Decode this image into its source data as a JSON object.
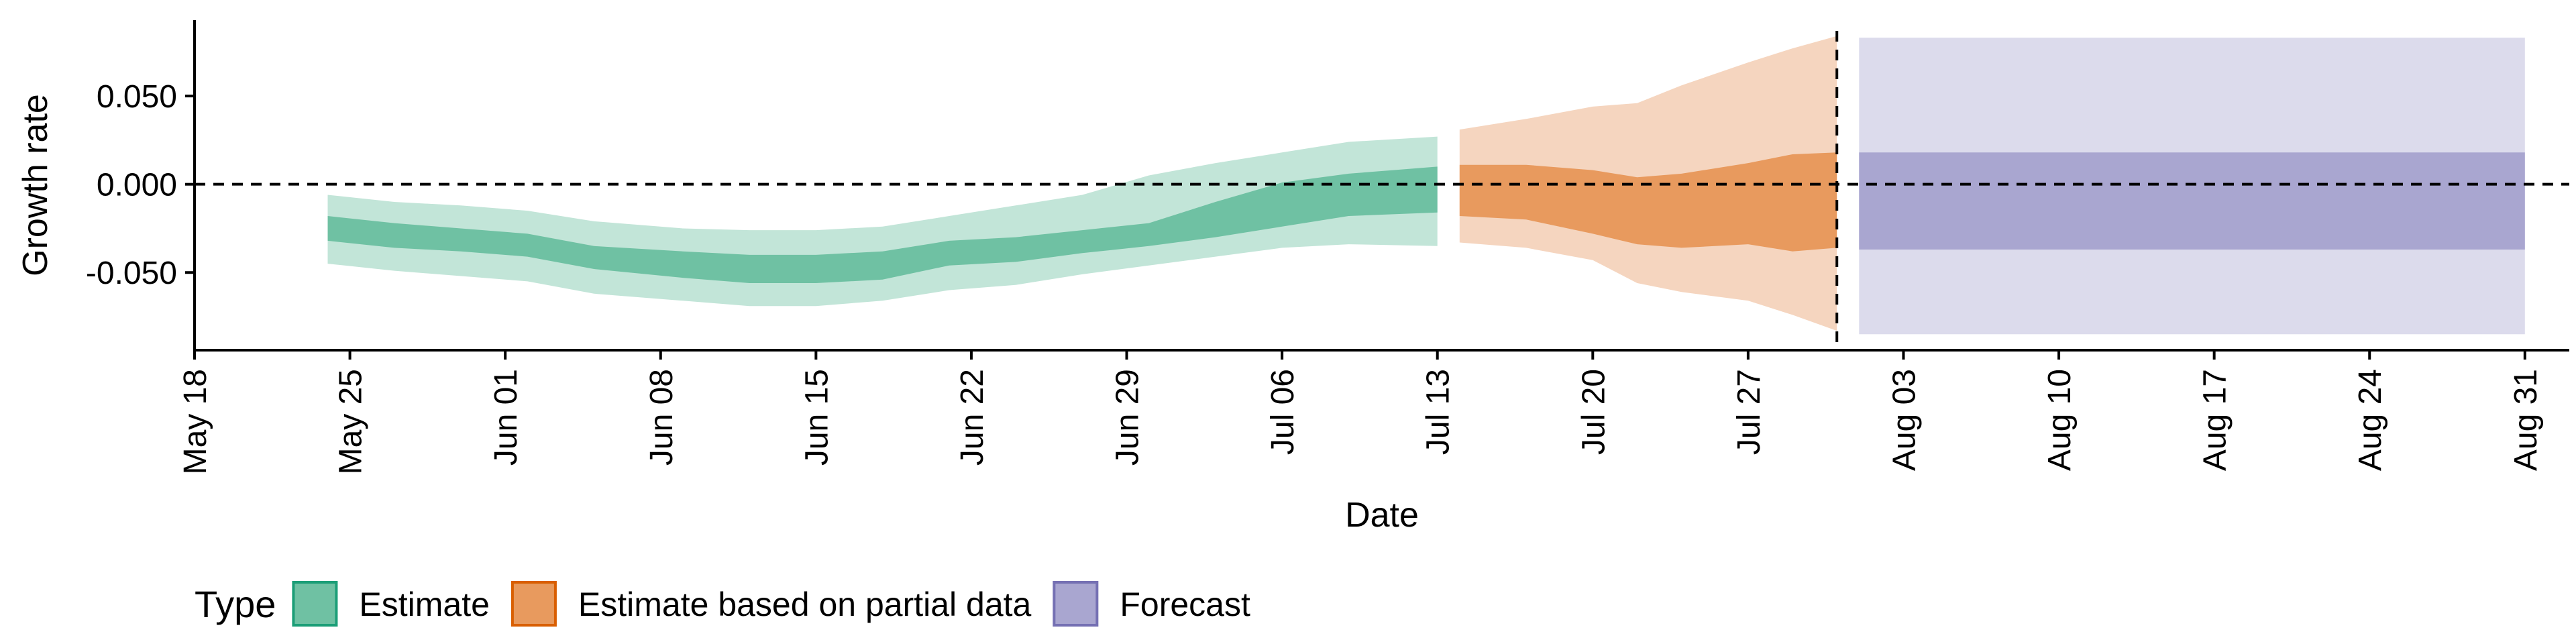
{
  "chart_data": {
    "type": "area",
    "xlabel": "Date",
    "ylabel": "Growth rate",
    "y_ticks": [
      -0.05,
      0.0,
      0.05
    ],
    "y_tick_labels": [
      "-0.050",
      "0.000",
      "0.050"
    ],
    "x_ticks": [
      "2020-05-18",
      "2020-05-25",
      "2020-06-01",
      "2020-06-08",
      "2020-06-15",
      "2020-06-22",
      "2020-06-29",
      "2020-07-06",
      "2020-07-13",
      "2020-07-20",
      "2020-07-27",
      "2020-08-03",
      "2020-08-10",
      "2020-08-17",
      "2020-08-24",
      "2020-08-31"
    ],
    "x_tick_labels": [
      "May 18",
      "May 25",
      "Jun 01",
      "Jun 08",
      "Jun 15",
      "Jun 22",
      "Jun 29",
      "Jul 06",
      "Jul 13",
      "Jul 20",
      "Jul 27",
      "Aug 03",
      "Aug 10",
      "Aug 17",
      "Aug 24",
      "Aug 31"
    ],
    "xlim": [
      "2020-05-18",
      "2020-09-02"
    ],
    "ylim": [
      -0.094,
      0.093
    ],
    "reference_line_y": 0.0,
    "forecast_start_date": "2020-07-31",
    "legend": {
      "title": "Type",
      "position": "bottom",
      "entries": [
        "Estimate",
        "Estimate based on partial data",
        "Forecast"
      ]
    },
    "colors": {
      "Estimate": {
        "inner": "#6fc1a3",
        "outer": "#c2e5d8",
        "border": "#1b9e77"
      },
      "Estimate based on partial data": {
        "inner": "#e89a5e",
        "outer": "#f5d5bf",
        "border": "#d95f02"
      },
      "Forecast": {
        "inner": "#a9a6d0",
        "outer": "#dcdbec",
        "border": "#7570b3"
      }
    },
    "series": [
      {
        "name": "Estimate",
        "points": [
          {
            "date": "2020-05-24",
            "lower_90": -0.045,
            "lower_50": -0.032,
            "upper_50": -0.018,
            "upper_90": -0.006
          },
          {
            "date": "2020-05-27",
            "lower_90": -0.049,
            "lower_50": -0.036,
            "upper_50": -0.022,
            "upper_90": -0.01
          },
          {
            "date": "2020-05-30",
            "lower_90": -0.052,
            "lower_50": -0.038,
            "upper_50": -0.025,
            "upper_90": -0.012
          },
          {
            "date": "2020-06-02",
            "lower_90": -0.055,
            "lower_50": -0.041,
            "upper_50": -0.028,
            "upper_90": -0.015
          },
          {
            "date": "2020-06-05",
            "lower_90": -0.062,
            "lower_50": -0.048,
            "upper_50": -0.035,
            "upper_90": -0.021
          },
          {
            "date": "2020-06-09",
            "lower_90": -0.066,
            "lower_50": -0.053,
            "upper_50": -0.038,
            "upper_90": -0.025
          },
          {
            "date": "2020-06-12",
            "lower_90": -0.069,
            "lower_50": -0.056,
            "upper_50": -0.04,
            "upper_90": -0.026
          },
          {
            "date": "2020-06-15",
            "lower_90": -0.069,
            "lower_50": -0.056,
            "upper_50": -0.04,
            "upper_90": -0.026
          },
          {
            "date": "2020-06-18",
            "lower_90": -0.066,
            "lower_50": -0.054,
            "upper_50": -0.038,
            "upper_90": -0.024
          },
          {
            "date": "2020-06-21",
            "lower_90": -0.06,
            "lower_50": -0.046,
            "upper_50": -0.032,
            "upper_90": -0.018
          },
          {
            "date": "2020-06-24",
            "lower_90": -0.057,
            "lower_50": -0.044,
            "upper_50": -0.03,
            "upper_90": -0.012
          },
          {
            "date": "2020-06-27",
            "lower_90": -0.051,
            "lower_50": -0.039,
            "upper_50": -0.026,
            "upper_90": -0.006
          },
          {
            "date": "2020-06-30",
            "lower_90": -0.046,
            "lower_50": -0.035,
            "upper_50": -0.022,
            "upper_90": 0.005
          },
          {
            "date": "2020-07-03",
            "lower_90": -0.041,
            "lower_50": -0.03,
            "upper_50": -0.01,
            "upper_90": 0.012
          },
          {
            "date": "2020-07-06",
            "lower_90": -0.036,
            "lower_50": -0.024,
            "upper_50": 0.001,
            "upper_90": 0.018
          },
          {
            "date": "2020-07-09",
            "lower_90": -0.034,
            "lower_50": -0.018,
            "upper_50": 0.006,
            "upper_90": 0.024
          },
          {
            "date": "2020-07-13",
            "lower_90": -0.035,
            "lower_50": -0.016,
            "upper_50": 0.01,
            "upper_90": 0.027
          }
        ]
      },
      {
        "name": "Estimate based on partial data",
        "points": [
          {
            "date": "2020-07-14",
            "lower_90": -0.033,
            "lower_50": -0.018,
            "upper_50": 0.011,
            "upper_90": 0.031
          },
          {
            "date": "2020-07-17",
            "lower_90": -0.036,
            "lower_50": -0.02,
            "upper_50": 0.011,
            "upper_90": 0.037
          },
          {
            "date": "2020-07-20",
            "lower_90": -0.043,
            "lower_50": -0.028,
            "upper_50": 0.008,
            "upper_90": 0.044
          },
          {
            "date": "2020-07-22",
            "lower_90": -0.056,
            "lower_50": -0.034,
            "upper_50": 0.004,
            "upper_90": 0.046
          },
          {
            "date": "2020-07-24",
            "lower_90": -0.061,
            "lower_50": -0.036,
            "upper_50": 0.006,
            "upper_90": 0.056
          },
          {
            "date": "2020-07-27",
            "lower_90": -0.066,
            "lower_50": -0.034,
            "upper_50": 0.012,
            "upper_90": 0.069
          },
          {
            "date": "2020-07-29",
            "lower_90": -0.074,
            "lower_50": -0.038,
            "upper_50": 0.017,
            "upper_90": 0.077
          },
          {
            "date": "2020-07-31",
            "lower_90": -0.083,
            "lower_50": -0.036,
            "upper_50": 0.018,
            "upper_90": 0.084
          }
        ]
      },
      {
        "name": "Forecast",
        "points": [
          {
            "date": "2020-08-01",
            "lower_90": -0.085,
            "lower_50": -0.037,
            "upper_50": 0.018,
            "upper_90": 0.083
          },
          {
            "date": "2020-08-31",
            "lower_90": -0.085,
            "lower_50": -0.037,
            "upper_50": 0.018,
            "upper_90": 0.083
          }
        ]
      }
    ]
  }
}
